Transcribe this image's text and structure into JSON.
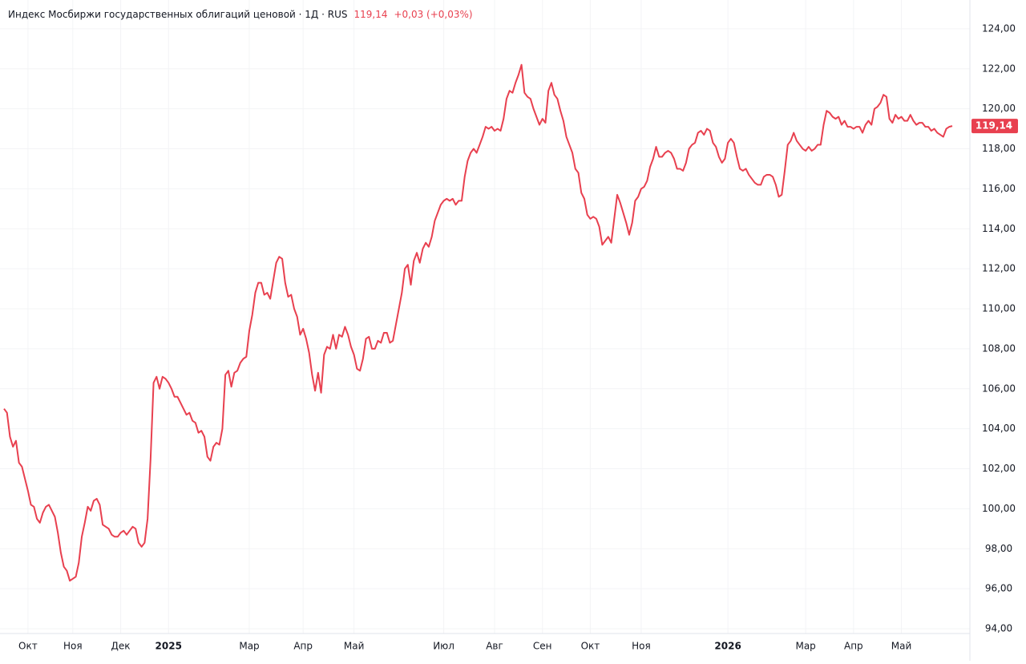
{
  "chart_data": {
    "type": "line",
    "title": "Индекс Мосбиржи государственных облигаций ценовой · 1Д · RUS",
    "last_value": {
      "value": 119.14,
      "label": "119,14"
    },
    "change_label": "+0,03 (+0,03%)",
    "color": "#e8404f",
    "grid": true,
    "ylim": [
      93.76,
      125.44
    ],
    "yticks": [
      {
        "value": 94,
        "label": "94,00"
      },
      {
        "value": 96,
        "label": "96,00"
      },
      {
        "value": 98,
        "label": "98,00"
      },
      {
        "value": 100,
        "label": "100,00"
      },
      {
        "value": 102,
        "label": "102,00"
      },
      {
        "value": 104,
        "label": "104,00"
      },
      {
        "value": 106,
        "label": "106,00"
      },
      {
        "value": 108,
        "label": "108,00"
      },
      {
        "value": 110,
        "label": "110,00"
      },
      {
        "value": 112,
        "label": "112,00"
      },
      {
        "value": 114,
        "label": "114,00"
      },
      {
        "value": 116,
        "label": "116,00"
      },
      {
        "value": 118,
        "label": "118,00"
      },
      {
        "value": 120,
        "label": "120,00"
      },
      {
        "value": 122,
        "label": "122,00"
      },
      {
        "value": 124,
        "label": "124,00"
      }
    ],
    "categories": [
      null,
      null,
      null,
      null,
      null,
      null,
      null,
      null,
      "Окт",
      null,
      null,
      null,
      null,
      null,
      null,
      null,
      null,
      null,
      null,
      null,
      null,
      null,
      null,
      "Ноя",
      null,
      null,
      null,
      null,
      null,
      null,
      null,
      null,
      null,
      null,
      null,
      null,
      null,
      null,
      null,
      "Дек",
      null,
      null,
      null,
      null,
      null,
      null,
      null,
      null,
      null,
      null,
      null,
      null,
      null,
      null,
      null,
      "2025",
      null,
      null,
      null,
      null,
      null,
      null,
      null,
      null,
      null,
      null,
      null,
      null,
      null,
      null,
      null,
      null,
      null,
      null,
      null,
      null,
      null,
      null,
      null,
      null,
      null,
      null,
      "Мар",
      null,
      null,
      null,
      null,
      null,
      null,
      null,
      null,
      null,
      null,
      null,
      null,
      null,
      null,
      null,
      null,
      null,
      "Апр",
      null,
      null,
      null,
      null,
      null,
      null,
      null,
      null,
      null,
      null,
      null,
      null,
      null,
      null,
      null,
      null,
      "Май",
      null,
      null,
      null,
      null,
      null,
      null,
      null,
      null,
      null,
      null,
      null,
      null,
      null,
      null,
      null,
      null,
      null,
      null,
      null,
      null,
      null,
      null,
      null,
      null,
      null,
      null,
      null,
      null,
      null,
      "Июл",
      null,
      null,
      null,
      null,
      null,
      null,
      null,
      null,
      null,
      null,
      null,
      null,
      null,
      null,
      null,
      null,
      "Авг",
      null,
      null,
      null,
      null,
      null,
      null,
      null,
      null,
      null,
      null,
      null,
      null,
      null,
      null,
      null,
      "Сен",
      null,
      null,
      null,
      null,
      null,
      null,
      null,
      null,
      null,
      null,
      null,
      null,
      null,
      null,
      null,
      "Окт",
      null,
      null,
      null,
      null,
      null,
      null,
      null,
      null,
      null,
      null,
      null,
      null,
      null,
      null,
      null,
      null,
      "Ноя",
      null,
      null,
      null,
      null,
      null,
      null,
      null,
      null,
      null,
      null,
      null,
      null,
      null,
      null,
      null,
      null,
      null,
      null,
      null,
      null,
      null,
      null,
      null,
      null,
      null,
      null,
      null,
      null,
      "2026",
      null,
      null,
      null,
      null,
      null,
      null,
      null,
      null,
      null,
      null,
      null,
      null,
      null,
      null,
      null,
      null,
      null,
      null,
      null,
      null,
      null,
      null,
      null,
      null,
      null,
      "Мар",
      null,
      null,
      null,
      null,
      null,
      null,
      null,
      null,
      null,
      null,
      null,
      null,
      null,
      null,
      null,
      "Апр",
      null,
      null,
      null,
      null,
      null,
      null,
      null,
      null,
      null,
      null,
      null,
      null,
      null,
      null,
      null,
      "Май",
      null,
      null,
      null,
      null,
      null,
      null,
      null,
      null,
      null,
      null,
      null,
      null,
      null,
      null,
      null,
      null,
      null
    ],
    "values": [
      105.0,
      104.8,
      103.6,
      103.1,
      103.4,
      102.3,
      102.1,
      101.5,
      100.9,
      100.2,
      100.1,
      99.5,
      99.3,
      99.8,
      100.1,
      100.2,
      99.9,
      99.6,
      98.8,
      97.8,
      97.1,
      96.9,
      96.4,
      96.5,
      96.6,
      97.3,
      98.6,
      99.3,
      100.1,
      99.9,
      100.4,
      100.5,
      100.2,
      99.2,
      99.1,
      99.0,
      98.7,
      98.6,
      98.6,
      98.8,
      98.9,
      98.7,
      98.9,
      99.1,
      99.0,
      98.3,
      98.1,
      98.3,
      99.5,
      102.5,
      106.3,
      106.6,
      106.0,
      106.6,
      106.5,
      106.3,
      106.0,
      105.6,
      105.6,
      105.3,
      105.0,
      104.7,
      104.8,
      104.4,
      104.3,
      103.8,
      103.9,
      103.6,
      102.6,
      102.4,
      103.1,
      103.3,
      103.2,
      104.0,
      106.7,
      106.9,
      106.1,
      106.8,
      106.9,
      107.3,
      107.5,
      107.6,
      108.9,
      109.7,
      110.8,
      111.3,
      111.3,
      110.7,
      110.8,
      110.5,
      111.4,
      112.3,
      112.6,
      112.5,
      111.3,
      110.6,
      110.7,
      110.0,
      109.6,
      108.7,
      109.0,
      108.5,
      107.8,
      106.7,
      105.9,
      106.8,
      105.8,
      107.7,
      108.1,
      108.0,
      108.7,
      108.0,
      108.7,
      108.6,
      109.1,
      108.7,
      108.1,
      107.7,
      107.0,
      106.9,
      107.5,
      108.5,
      108.6,
      108.0,
      108.0,
      108.4,
      108.3,
      108.8,
      108.8,
      108.3,
      108.4,
      109.2,
      110.0,
      110.8,
      112.0,
      112.2,
      111.2,
      112.4,
      112.8,
      112.3,
      113.0,
      113.3,
      113.1,
      113.6,
      114.4,
      114.8,
      115.2,
      115.4,
      115.5,
      115.4,
      115.5,
      115.2,
      115.4,
      115.4,
      116.6,
      117.4,
      117.8,
      118.0,
      117.8,
      118.2,
      118.6,
      119.1,
      119.0,
      119.1,
      118.9,
      119.0,
      118.9,
      119.5,
      120.5,
      120.9,
      120.8,
      121.3,
      121.7,
      122.2,
      120.8,
      120.6,
      120.5,
      120.0,
      119.6,
      119.2,
      119.5,
      119.3,
      120.9,
      121.3,
      120.7,
      120.5,
      119.9,
      119.4,
      118.6,
      118.2,
      117.8,
      117.0,
      116.8,
      115.8,
      115.5,
      114.7,
      114.5,
      114.6,
      114.5,
      114.1,
      113.2,
      113.4,
      113.6,
      113.3,
      114.5,
      115.7,
      115.3,
      114.8,
      114.3,
      113.7,
      114.3,
      115.4,
      115.6,
      116.0,
      116.1,
      116.4,
      117.1,
      117.5,
      118.1,
      117.6,
      117.6,
      117.8,
      117.9,
      117.8,
      117.5,
      117.0,
      117.0,
      116.9,
      117.3,
      118.0,
      118.2,
      118.3,
      118.8,
      118.9,
      118.7,
      119.0,
      118.9,
      118.3,
      118.1,
      117.6,
      117.3,
      117.5,
      118.3,
      118.5,
      118.3,
      117.6,
      117.0,
      116.9,
      117.0,
      116.7,
      116.5,
      116.3,
      116.2,
      116.2,
      116.6,
      116.7,
      116.7,
      116.6,
      116.2,
      115.6,
      115.7,
      116.9,
      118.2,
      118.4,
      118.8,
      118.4,
      118.2,
      118.0,
      117.9,
      118.1,
      117.9,
      118.0,
      118.2,
      118.2,
      119.2,
      119.9,
      119.8,
      119.6,
      119.5,
      119.6,
      119.2,
      119.4,
      119.1,
      119.1,
      119.0,
      119.1,
      119.1,
      118.8,
      119.2,
      119.4,
      119.2,
      120.0,
      120.1,
      120.3,
      120.7,
      120.6,
      119.5,
      119.3,
      119.7,
      119.5,
      119.6,
      119.4,
      119.4,
      119.7,
      119.4,
      119.2,
      119.3,
      119.3,
      119.1,
      119.1,
      118.9,
      119.0,
      118.8,
      118.7,
      118.6,
      119.0,
      119.1,
      119.14
    ]
  }
}
